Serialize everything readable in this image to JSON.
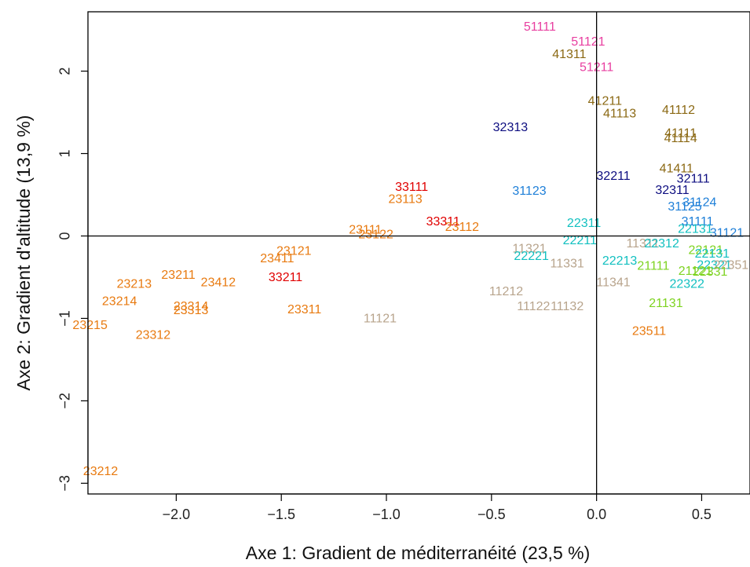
{
  "chart_data": {
    "type": "scatter",
    "title": "",
    "xlabel": "Axe 1: Gradient de méditerranéité (23,5 %)",
    "ylabel": "Axe 2: Gradient d'altitude (13,9 %)",
    "xlim": [
      -2.42,
      0.73
    ],
    "ylim": [
      -3.13,
      2.72
    ],
    "x_ticks": [
      -2.0,
      -1.5,
      -1.0,
      -0.5,
      0.0,
      0.5
    ],
    "x_tick_labels": [
      "−2.0",
      "−1.5",
      "−1.0",
      "−0.5",
      "0.0",
      "0.5"
    ],
    "y_ticks": [
      -3,
      -2,
      -1,
      0,
      1,
      2
    ],
    "y_tick_labels": [
      "−3",
      "−2",
      "−1",
      "0",
      "1",
      "2"
    ],
    "reference_lines": {
      "x": 0,
      "y": 0
    },
    "grid": false,
    "legend": "none",
    "colors": {
      "pink": "#e83fa0",
      "olive": "#8b6914",
      "navy": "#0d0d80",
      "blue": "#1e7fd8",
      "teal": "#12c0c0",
      "red": "#e00000",
      "orange": "#e87a10",
      "tan": "#b8a48c",
      "lime": "#7ed321"
    },
    "points": [
      {
        "label": "51111",
        "x": -0.27,
        "y": 2.53,
        "color": "pink"
      },
      {
        "label": "51121",
        "x": -0.04,
        "y": 2.35,
        "color": "pink"
      },
      {
        "label": "41311",
        "x": -0.13,
        "y": 2.2,
        "color": "olive"
      },
      {
        "label": "51211",
        "x": 0.0,
        "y": 2.04,
        "color": "pink"
      },
      {
        "label": "41211",
        "x": 0.04,
        "y": 1.63,
        "color": "olive"
      },
      {
        "label": "41113",
        "x": 0.11,
        "y": 1.48,
        "color": "olive"
      },
      {
        "label": "41112",
        "x": 0.39,
        "y": 1.52,
        "color": "olive"
      },
      {
        "label": "32313",
        "x": -0.41,
        "y": 1.31,
        "color": "navy"
      },
      {
        "label": "41111",
        "x": 0.4,
        "y": 1.24,
        "color": "olive"
      },
      {
        "label": "41114",
        "x": 0.4,
        "y": 1.18,
        "color": "olive"
      },
      {
        "label": "41411",
        "x": 0.38,
        "y": 0.81,
        "color": "olive"
      },
      {
        "label": "32111",
        "x": 0.46,
        "y": 0.69,
        "color": "navy"
      },
      {
        "label": "32211",
        "x": 0.08,
        "y": 0.72,
        "color": "navy"
      },
      {
        "label": "32311",
        "x": 0.36,
        "y": 0.55,
        "color": "navy"
      },
      {
        "label": "33111",
        "x": -0.88,
        "y": 0.59,
        "color": "red"
      },
      {
        "label": "31123",
        "x": -0.32,
        "y": 0.54,
        "color": "blue"
      },
      {
        "label": "23113",
        "x": -0.91,
        "y": 0.44,
        "color": "orange"
      },
      {
        "label": "31124",
        "x": 0.49,
        "y": 0.4,
        "color": "blue"
      },
      {
        "label": "31125",
        "x": 0.42,
        "y": 0.35,
        "color": "blue"
      },
      {
        "label": "33311",
        "x": -0.73,
        "y": 0.17,
        "color": "red"
      },
      {
        "label": "22311",
        "x": -0.06,
        "y": 0.15,
        "color": "teal"
      },
      {
        "label": "31111",
        "x": 0.48,
        "y": 0.17,
        "color": "blue"
      },
      {
        "label": "23112",
        "x": -0.64,
        "y": 0.1,
        "color": "orange"
      },
      {
        "label": "23111",
        "x": -1.1,
        "y": 0.07,
        "color": "orange"
      },
      {
        "label": "23122",
        "x": -1.05,
        "y": 0.01,
        "color": "orange"
      },
      {
        "label": "22131",
        "x": 0.47,
        "y": 0.08,
        "color": "teal"
      },
      {
        "label": "31121",
        "x": 0.62,
        "y": 0.03,
        "color": "blue"
      },
      {
        "label": "22211",
        "x": -0.08,
        "y": -0.06,
        "color": "teal"
      },
      {
        "label": "11321",
        "x": -0.32,
        "y": -0.16,
        "color": "tan"
      },
      {
        "label": "11311",
        "x": 0.22,
        "y": -0.1,
        "color": "tan"
      },
      {
        "label": "22312",
        "x": 0.31,
        "y": -0.1,
        "color": "teal"
      },
      {
        "label": "23121",
        "x": -1.44,
        "y": -0.19,
        "color": "orange"
      },
      {
        "label": "22221",
        "x": -0.31,
        "y": -0.25,
        "color": "teal"
      },
      {
        "label": "23411",
        "x": -1.52,
        "y": -0.28,
        "color": "orange"
      },
      {
        "label": "11331",
        "x": -0.14,
        "y": -0.34,
        "color": "tan"
      },
      {
        "label": "22213",
        "x": 0.11,
        "y": -0.31,
        "color": "teal"
      },
      {
        "label": "21111",
        "x": 0.27,
        "y": -0.37,
        "color": "lime"
      },
      {
        "label": "22121",
        "x": 0.52,
        "y": -0.18,
        "color": "lime"
      },
      {
        "label": "22131",
        "x": 0.55,
        "y": -0.22,
        "color": "teal"
      },
      {
        "label": "22321",
        "x": 0.56,
        "y": -0.36,
        "color": "teal"
      },
      {
        "label": "22351",
        "x": 0.64,
        "y": -0.36,
        "color": "tan"
      },
      {
        "label": "21121",
        "x": 0.47,
        "y": -0.43,
        "color": "lime"
      },
      {
        "label": "22331",
        "x": 0.54,
        "y": -0.44,
        "color": "lime"
      },
      {
        "label": "23211",
        "x": -1.99,
        "y": -0.48,
        "color": "orange"
      },
      {
        "label": "23412",
        "x": -1.8,
        "y": -0.57,
        "color": "orange"
      },
      {
        "label": "33211",
        "x": -1.48,
        "y": -0.51,
        "color": "red"
      },
      {
        "label": "22322",
        "x": 0.43,
        "y": -0.59,
        "color": "teal"
      },
      {
        "label": "23213",
        "x": -2.2,
        "y": -0.59,
        "color": "orange"
      },
      {
        "label": "11341",
        "x": 0.08,
        "y": -0.57,
        "color": "tan"
      },
      {
        "label": "11212",
        "x": -0.43,
        "y": -0.68,
        "color": "tan"
      },
      {
        "label": "23214",
        "x": -2.27,
        "y": -0.8,
        "color": "orange"
      },
      {
        "label": "21131",
        "x": 0.33,
        "y": -0.82,
        "color": "lime"
      },
      {
        "label": "11122",
        "x": -0.3,
        "y": -0.86,
        "color": "tan"
      },
      {
        "label": "11132",
        "x": -0.14,
        "y": -0.86,
        "color": "tan"
      },
      {
        "label": "23314",
        "x": -1.93,
        "y": -0.86,
        "color": "orange"
      },
      {
        "label": "23313",
        "x": -1.93,
        "y": -0.91,
        "color": "orange"
      },
      {
        "label": "23311",
        "x": -1.39,
        "y": -0.9,
        "color": "orange"
      },
      {
        "label": "11121",
        "x": -1.03,
        "y": -1.01,
        "color": "tan"
      },
      {
        "label": "23215",
        "x": -2.41,
        "y": -1.09,
        "color": "orange"
      },
      {
        "label": "23511",
        "x": 0.25,
        "y": -1.16,
        "color": "orange"
      },
      {
        "label": "23312",
        "x": -2.11,
        "y": -1.21,
        "color": "orange"
      },
      {
        "label": "23212",
        "x": -2.36,
        "y": -2.86,
        "color": "orange"
      }
    ]
  }
}
